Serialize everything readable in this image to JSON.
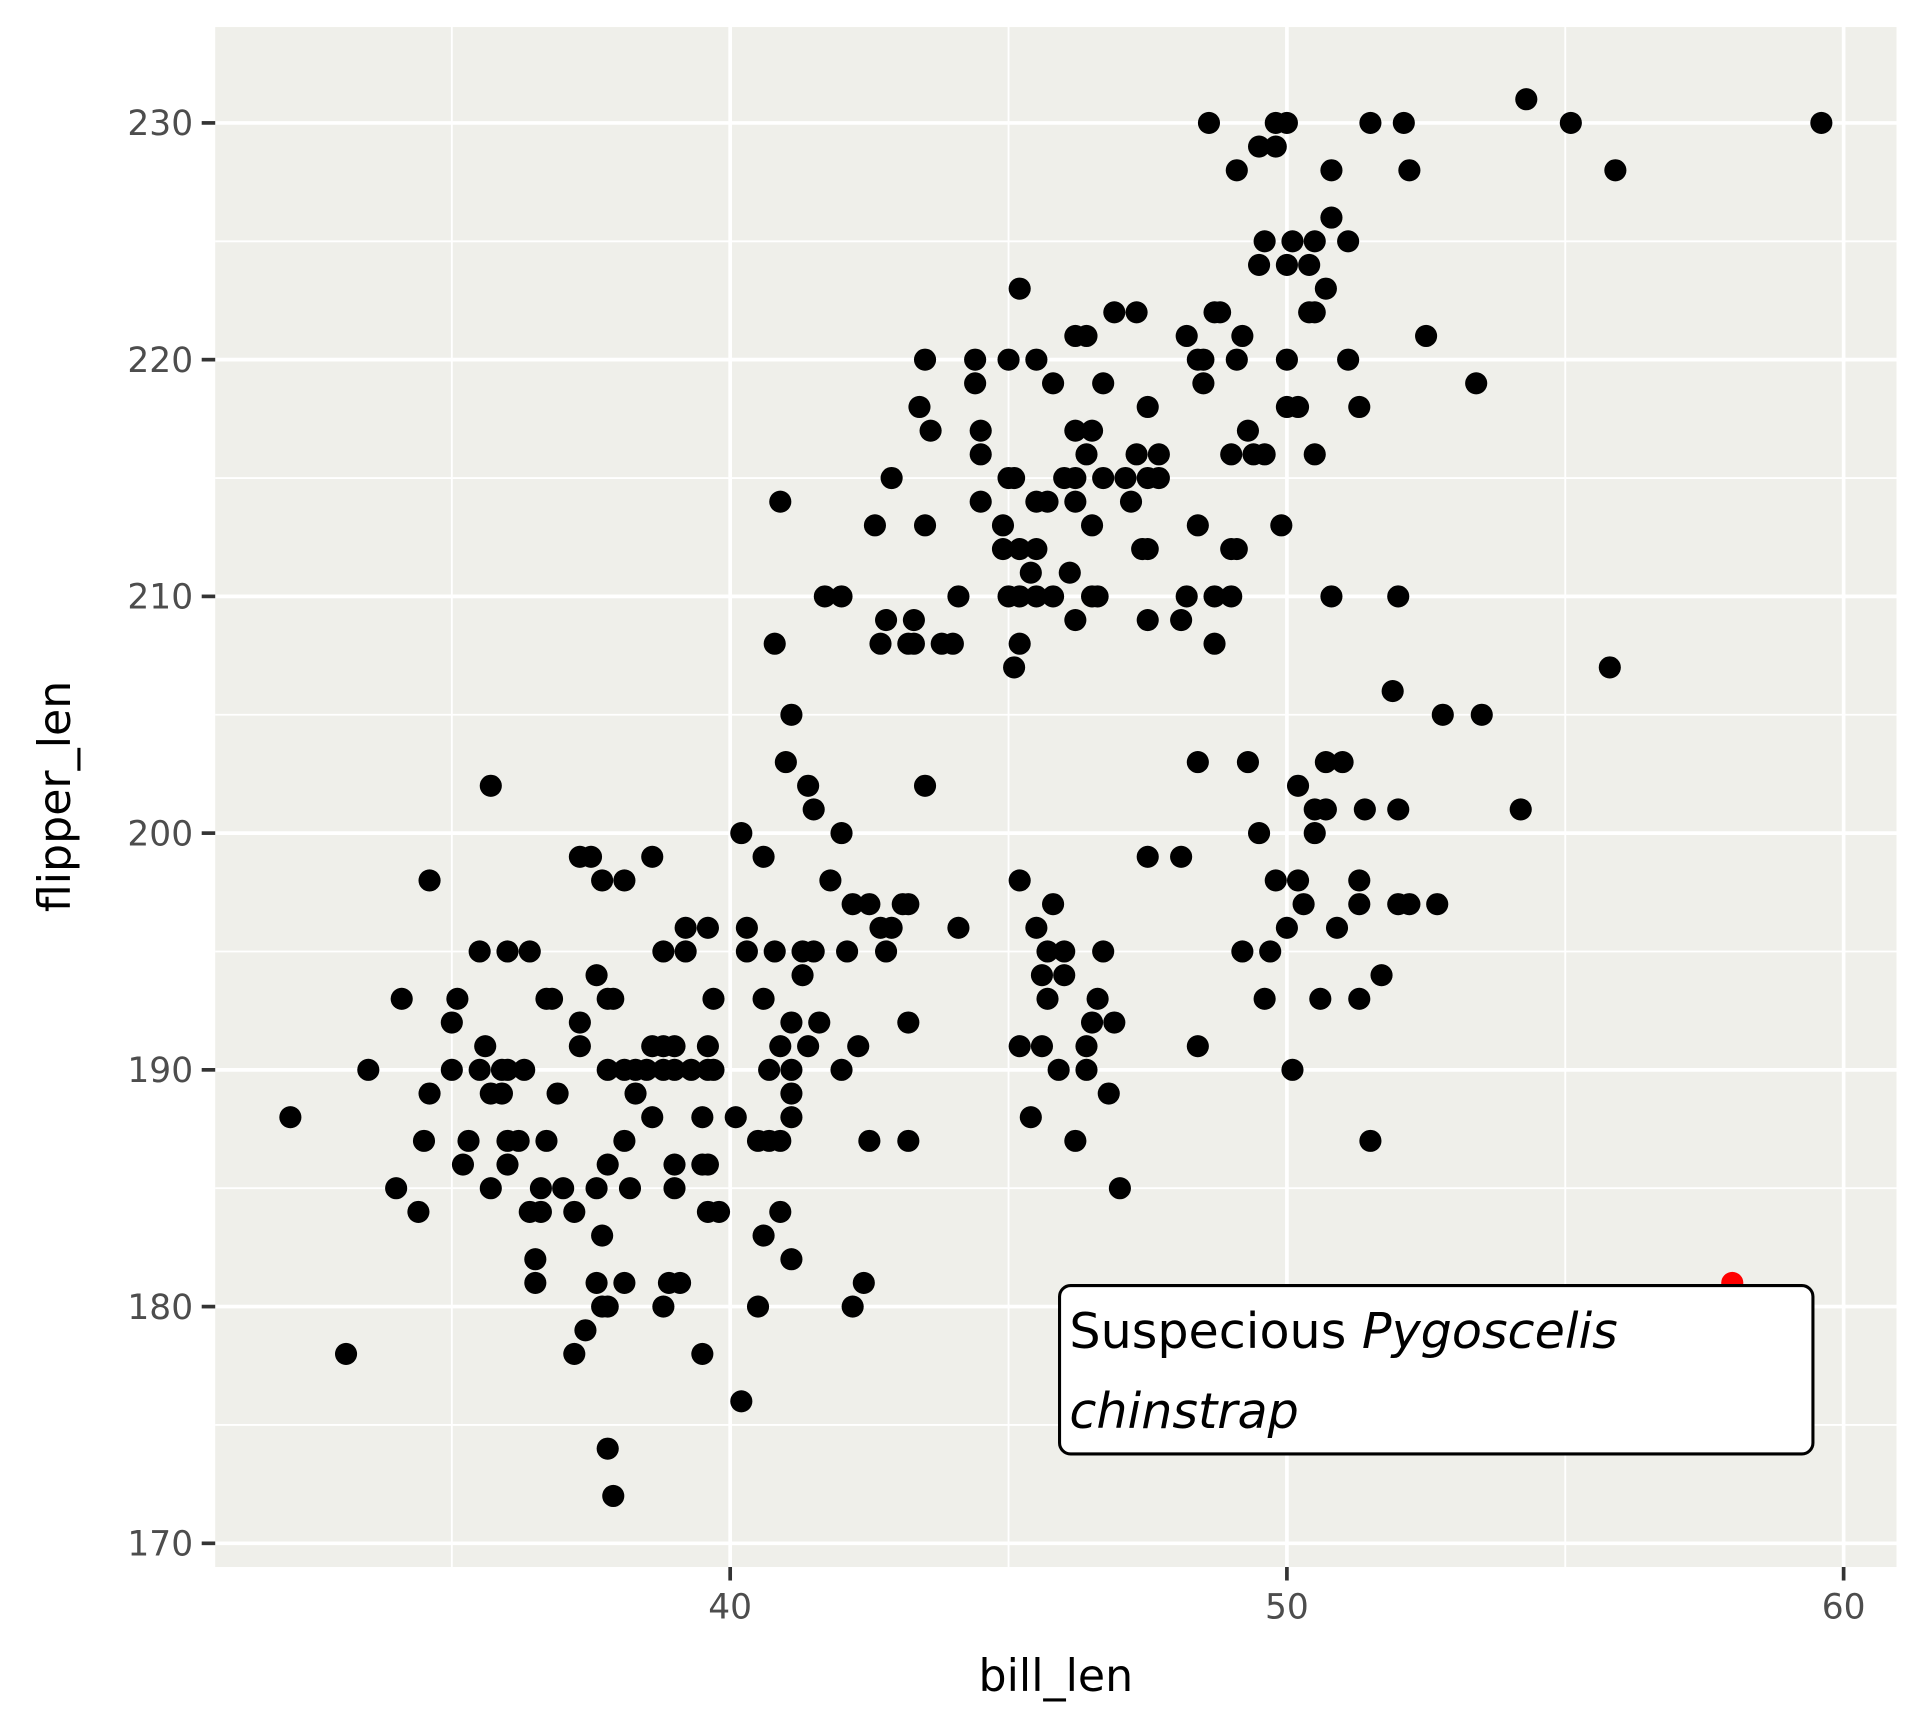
{
  "chart_data": {
    "type": "scatter",
    "title": "",
    "xlabel": "bill_len",
    "ylabel": "flipper_len",
    "xlim": [
      30.75,
      60.95
    ],
    "ylim": [
      169.0,
      234.05
    ],
    "x_ticks": [
      40,
      50,
      60
    ],
    "x_tick_labels": [
      "40",
      "50",
      "60"
    ],
    "y_ticks": [
      170,
      180,
      190,
      200,
      210,
      220,
      230
    ],
    "y_tick_labels": [
      "170",
      "180",
      "190",
      "200",
      "210",
      "220",
      "230"
    ],
    "grid": true,
    "colors": {
      "panel": "#efefea",
      "grid": "#ffffff",
      "point": "#000000",
      "highlight": "#ff0000"
    },
    "points": [
      [
        54.3,
        231
      ],
      [
        48.6,
        230
      ],
      [
        49.8,
        230
      ],
      [
        50.0,
        230
      ],
      [
        51.5,
        230
      ],
      [
        52.1,
        230
      ],
      [
        55.1,
        230
      ],
      [
        59.6,
        230
      ],
      [
        49.5,
        229
      ],
      [
        49.8,
        229
      ],
      [
        49.1,
        228
      ],
      [
        50.8,
        228
      ],
      [
        52.2,
        228
      ],
      [
        55.9,
        228
      ],
      [
        50.8,
        226
      ],
      [
        49.6,
        225
      ],
      [
        50.1,
        225
      ],
      [
        50.5,
        225
      ],
      [
        51.1,
        225
      ],
      [
        49.5,
        224
      ],
      [
        50.0,
        224
      ],
      [
        50.4,
        224
      ],
      [
        45.2,
        223
      ],
      [
        50.7,
        223
      ],
      [
        46.9,
        222
      ],
      [
        47.3,
        222
      ],
      [
        48.7,
        222
      ],
      [
        48.8,
        222
      ],
      [
        50.4,
        222
      ],
      [
        50.5,
        222
      ],
      [
        46.2,
        221
      ],
      [
        46.4,
        221
      ],
      [
        48.2,
        221
      ],
      [
        49.2,
        221
      ],
      [
        52.5,
        221
      ],
      [
        43.5,
        220
      ],
      [
        44.4,
        220
      ],
      [
        45.0,
        220
      ],
      [
        45.5,
        220
      ],
      [
        48.4,
        220
      ],
      [
        48.5,
        220
      ],
      [
        49.1,
        220
      ],
      [
        50.0,
        220
      ],
      [
        51.1,
        220
      ],
      [
        44.4,
        219
      ],
      [
        45.8,
        219
      ],
      [
        46.7,
        219
      ],
      [
        48.5,
        219
      ],
      [
        53.4,
        219
      ],
      [
        43.4,
        218
      ],
      [
        47.5,
        218
      ],
      [
        50.0,
        218
      ],
      [
        50.2,
        218
      ],
      [
        51.3,
        218
      ],
      [
        43.6,
        217
      ],
      [
        44.5,
        217
      ],
      [
        46.2,
        217
      ],
      [
        46.5,
        217
      ],
      [
        49.3,
        217
      ],
      [
        44.5,
        216
      ],
      [
        46.4,
        216
      ],
      [
        47.3,
        216
      ],
      [
        47.7,
        216
      ],
      [
        49.0,
        216
      ],
      [
        49.4,
        216
      ],
      [
        49.6,
        216
      ],
      [
        50.5,
        216
      ],
      [
        42.9,
        215
      ],
      [
        45.0,
        215
      ],
      [
        45.1,
        215
      ],
      [
        46.0,
        215
      ],
      [
        46.2,
        215
      ],
      [
        46.7,
        215
      ],
      [
        47.1,
        215
      ],
      [
        47.5,
        215
      ],
      [
        47.7,
        215
      ],
      [
        40.9,
        214
      ],
      [
        44.5,
        214
      ],
      [
        45.5,
        214
      ],
      [
        45.7,
        214
      ],
      [
        46.2,
        214
      ],
      [
        47.2,
        214
      ],
      [
        42.6,
        213
      ],
      [
        43.5,
        213
      ],
      [
        44.9,
        213
      ],
      [
        46.5,
        213
      ],
      [
        48.4,
        213
      ],
      [
        49.9,
        213
      ],
      [
        44.9,
        212
      ],
      [
        45.2,
        212
      ],
      [
        45.5,
        212
      ],
      [
        47.4,
        212
      ],
      [
        47.5,
        212
      ],
      [
        49.0,
        212
      ],
      [
        49.1,
        212
      ],
      [
        45.4,
        211
      ],
      [
        46.1,
        211
      ],
      [
        41.7,
        210
      ],
      [
        42.0,
        210
      ],
      [
        44.1,
        210
      ],
      [
        45.0,
        210
      ],
      [
        45.2,
        210
      ],
      [
        45.5,
        210
      ],
      [
        45.8,
        210
      ],
      [
        46.5,
        210
      ],
      [
        46.6,
        210
      ],
      [
        48.2,
        210
      ],
      [
        48.7,
        210
      ],
      [
        49.0,
        210
      ],
      [
        50.8,
        210
      ],
      [
        52.0,
        210
      ],
      [
        42.8,
        209
      ],
      [
        43.3,
        209
      ],
      [
        46.2,
        209
      ],
      [
        47.5,
        209
      ],
      [
        48.1,
        209
      ],
      [
        40.8,
        208
      ],
      [
        42.7,
        208
      ],
      [
        43.2,
        208
      ],
      [
        43.3,
        208
      ],
      [
        43.8,
        208
      ],
      [
        44.0,
        208
      ],
      [
        45.2,
        208
      ],
      [
        48.7,
        208
      ],
      [
        45.1,
        207
      ],
      [
        55.8,
        207
      ],
      [
        51.9,
        206
      ],
      [
        41.1,
        205
      ],
      [
        52.8,
        205
      ],
      [
        53.5,
        205
      ],
      [
        41.0,
        203
      ],
      [
        48.4,
        203
      ],
      [
        49.3,
        203
      ],
      [
        50.7,
        203
      ],
      [
        51.0,
        203
      ],
      [
        35.7,
        202
      ],
      [
        41.4,
        202
      ],
      [
        43.5,
        202
      ],
      [
        50.2,
        202
      ],
      [
        41.5,
        201
      ],
      [
        50.5,
        201
      ],
      [
        50.7,
        201
      ],
      [
        51.4,
        201
      ],
      [
        52.0,
        201
      ],
      [
        54.2,
        201
      ],
      [
        40.2,
        200
      ],
      [
        42.0,
        200
      ],
      [
        49.5,
        200
      ],
      [
        50.5,
        200
      ],
      [
        37.3,
        199
      ],
      [
        37.5,
        199
      ],
      [
        38.6,
        199
      ],
      [
        40.6,
        199
      ],
      [
        47.5,
        199
      ],
      [
        48.1,
        199
      ],
      [
        34.6,
        198
      ],
      [
        37.7,
        198
      ],
      [
        38.1,
        198
      ],
      [
        41.8,
        198
      ],
      [
        45.2,
        198
      ],
      [
        49.8,
        198
      ],
      [
        50.2,
        198
      ],
      [
        51.3,
        198
      ],
      [
        42.2,
        197
      ],
      [
        42.5,
        197
      ],
      [
        43.1,
        197
      ],
      [
        43.2,
        197
      ],
      [
        45.8,
        197
      ],
      [
        50.3,
        197
      ],
      [
        51.3,
        197
      ],
      [
        52.0,
        197
      ],
      [
        52.2,
        197
      ],
      [
        52.7,
        197
      ],
      [
        39.2,
        196
      ],
      [
        39.6,
        196
      ],
      [
        40.3,
        196
      ],
      [
        42.7,
        196
      ],
      [
        42.9,
        196
      ],
      [
        44.1,
        196
      ],
      [
        45.5,
        196
      ],
      [
        50.0,
        196
      ],
      [
        50.9,
        196
      ],
      [
        35.5,
        195
      ],
      [
        36.0,
        195
      ],
      [
        36.4,
        195
      ],
      [
        38.8,
        195
      ],
      [
        39.2,
        195
      ],
      [
        40.3,
        195
      ],
      [
        40.8,
        195
      ],
      [
        41.3,
        195
      ],
      [
        41.5,
        195
      ],
      [
        42.1,
        195
      ],
      [
        42.8,
        195
      ],
      [
        45.7,
        195
      ],
      [
        46.0,
        195
      ],
      [
        46.7,
        195
      ],
      [
        49.2,
        195
      ],
      [
        49.7,
        195
      ],
      [
        37.6,
        194
      ],
      [
        41.3,
        194
      ],
      [
        45.6,
        194
      ],
      [
        46.0,
        194
      ],
      [
        51.7,
        194
      ],
      [
        34.1,
        193
      ],
      [
        35.1,
        193
      ],
      [
        36.7,
        193
      ],
      [
        36.8,
        193
      ],
      [
        37.8,
        193
      ],
      [
        37.9,
        193
      ],
      [
        39.7,
        193
      ],
      [
        40.6,
        193
      ],
      [
        45.7,
        193
      ],
      [
        46.6,
        193
      ],
      [
        49.6,
        193
      ],
      [
        50.6,
        193
      ],
      [
        51.3,
        193
      ],
      [
        35.0,
        192
      ],
      [
        37.3,
        192
      ],
      [
        41.1,
        192
      ],
      [
        41.6,
        192
      ],
      [
        43.2,
        192
      ],
      [
        46.5,
        192
      ],
      [
        46.9,
        192
      ],
      [
        35.6,
        191
      ],
      [
        37.3,
        191
      ],
      [
        38.6,
        191
      ],
      [
        38.8,
        191
      ],
      [
        39.0,
        191
      ],
      [
        39.6,
        191
      ],
      [
        40.9,
        191
      ],
      [
        41.4,
        191
      ],
      [
        42.3,
        191
      ],
      [
        45.2,
        191
      ],
      [
        45.6,
        191
      ],
      [
        46.4,
        191
      ],
      [
        48.4,
        191
      ],
      [
        33.5,
        190
      ],
      [
        35.0,
        190
      ],
      [
        35.5,
        190
      ],
      [
        35.9,
        190
      ],
      [
        36.0,
        190
      ],
      [
        36.3,
        190
      ],
      [
        37.8,
        190
      ],
      [
        38.1,
        190
      ],
      [
        38.3,
        190
      ],
      [
        38.5,
        190
      ],
      [
        38.8,
        190
      ],
      [
        39.0,
        190
      ],
      [
        39.3,
        190
      ],
      [
        39.6,
        190
      ],
      [
        39.7,
        190
      ],
      [
        40.7,
        190
      ],
      [
        41.1,
        190
      ],
      [
        42.0,
        190
      ],
      [
        45.9,
        190
      ],
      [
        46.4,
        190
      ],
      [
        50.1,
        190
      ],
      [
        34.6,
        189
      ],
      [
        35.7,
        189
      ],
      [
        35.9,
        189
      ],
      [
        36.9,
        189
      ],
      [
        38.3,
        189
      ],
      [
        41.1,
        189
      ],
      [
        46.8,
        189
      ],
      [
        32.1,
        188
      ],
      [
        38.6,
        188
      ],
      [
        39.5,
        188
      ],
      [
        40.1,
        188
      ],
      [
        41.1,
        188
      ],
      [
        45.4,
        188
      ],
      [
        34.5,
        187
      ],
      [
        35.3,
        187
      ],
      [
        36.0,
        187
      ],
      [
        36.2,
        187
      ],
      [
        36.7,
        187
      ],
      [
        38.1,
        187
      ],
      [
        40.5,
        187
      ],
      [
        40.7,
        187
      ],
      [
        40.9,
        187
      ],
      [
        42.5,
        187
      ],
      [
        43.2,
        187
      ],
      [
        46.2,
        187
      ],
      [
        51.5,
        187
      ],
      [
        35.2,
        186
      ],
      [
        36.0,
        186
      ],
      [
        37.8,
        186
      ],
      [
        39.0,
        186
      ],
      [
        39.5,
        186
      ],
      [
        39.6,
        186
      ],
      [
        34.0,
        185
      ],
      [
        35.7,
        185
      ],
      [
        36.6,
        185
      ],
      [
        37.0,
        185
      ],
      [
        37.6,
        185
      ],
      [
        38.2,
        185
      ],
      [
        39.0,
        185
      ],
      [
        47.0,
        185
      ],
      [
        34.4,
        184
      ],
      [
        36.4,
        184
      ],
      [
        36.6,
        184
      ],
      [
        37.2,
        184
      ],
      [
        39.6,
        184
      ],
      [
        39.8,
        184
      ],
      [
        40.9,
        184
      ],
      [
        37.7,
        183
      ],
      [
        40.6,
        183
      ],
      [
        36.5,
        182
      ],
      [
        41.1,
        182
      ],
      [
        36.5,
        181
      ],
      [
        37.6,
        181
      ],
      [
        38.1,
        181
      ],
      [
        38.9,
        181
      ],
      [
        39.1,
        181
      ],
      [
        42.4,
        181
      ],
      [
        37.7,
        180
      ],
      [
        37.8,
        180
      ],
      [
        38.8,
        180
      ],
      [
        40.5,
        180
      ],
      [
        42.2,
        180
      ],
      [
        37.4,
        179
      ],
      [
        33.1,
        178
      ],
      [
        37.2,
        178
      ],
      [
        39.5,
        178
      ],
      [
        40.2,
        176
      ],
      [
        37.8,
        174
      ],
      [
        37.9,
        172
      ]
    ],
    "highlight_point": [
      58.0,
      181
    ],
    "annotation": {
      "text_plain": "Suspecious ",
      "text_italic_1": "Pygoscelis",
      "text_italic_2": "chinstrap"
    }
  }
}
